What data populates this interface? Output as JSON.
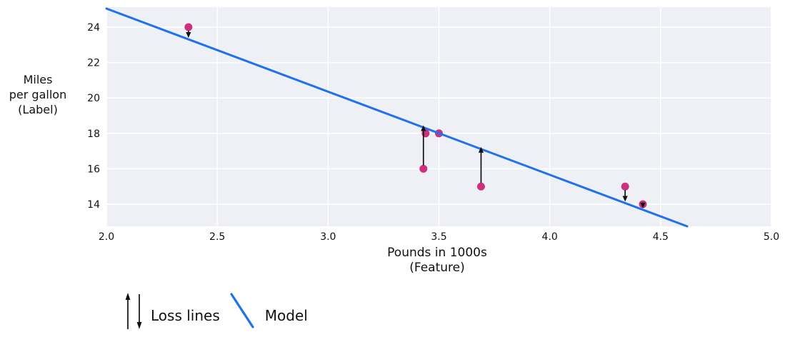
{
  "figure": {
    "background": "#ffffff",
    "plot_bg": "#eef0f6",
    "grid_color": "#ffffff",
    "text_color": "#111111"
  },
  "chart_data": {
    "type": "scatter",
    "title": "",
    "xlabel": "Pounds in 1000s\n(Feature)",
    "ylabel": "Miles\nper gallon\n(Label)",
    "xlim": [
      2.0,
      5.0
    ],
    "ylim": [
      12.75,
      25.13
    ],
    "grid": true,
    "x_ticks": [
      {
        "value": 2.0,
        "label": "2.0"
      },
      {
        "value": 2.5,
        "label": "2.5"
      },
      {
        "value": 3.0,
        "label": "3.0"
      },
      {
        "value": 3.5,
        "label": "3.5"
      },
      {
        "value": 4.0,
        "label": "4.0"
      },
      {
        "value": 4.5,
        "label": "4.5"
      },
      {
        "value": 5.0,
        "label": "5.0"
      }
    ],
    "y_ticks": [
      {
        "value": 14,
        "label": "14"
      },
      {
        "value": 16,
        "label": "16"
      },
      {
        "value": 18,
        "label": "18"
      },
      {
        "value": 20,
        "label": "20"
      },
      {
        "value": 22,
        "label": "22"
      },
      {
        "value": 24,
        "label": "24"
      }
    ],
    "points": {
      "color": "#cd317d",
      "data": [
        {
          "x": 2.37,
          "y": 24
        },
        {
          "x": 3.43,
          "y": 16
        },
        {
          "x": 3.44,
          "y": 18
        },
        {
          "x": 3.5,
          "y": 18
        },
        {
          "x": 3.69,
          "y": 15
        },
        {
          "x": 4.34,
          "y": 15
        },
        {
          "x": 4.42,
          "y": 14
        }
      ]
    },
    "model_line": {
      "color": "#1e73eb",
      "x1": 2.0,
      "y1": 25.05,
      "x2": 4.62,
      "y2": 12.75
    },
    "loss_lines": {
      "color": "#111111",
      "data": [
        {
          "x": 2.37,
          "from_y": 24,
          "direction": "down"
        },
        {
          "x": 3.43,
          "from_y": 16,
          "direction": "up"
        },
        {
          "x": 3.69,
          "from_y": 15,
          "direction": "up"
        },
        {
          "x": 4.34,
          "from_y": 15,
          "direction": "down"
        },
        {
          "x": 4.42,
          "from_y": 14,
          "direction": "down"
        }
      ]
    },
    "legend": {
      "items": [
        {
          "symbol": "arrows",
          "label": "Loss lines"
        },
        {
          "symbol": "line",
          "label": "Model"
        }
      ]
    }
  }
}
